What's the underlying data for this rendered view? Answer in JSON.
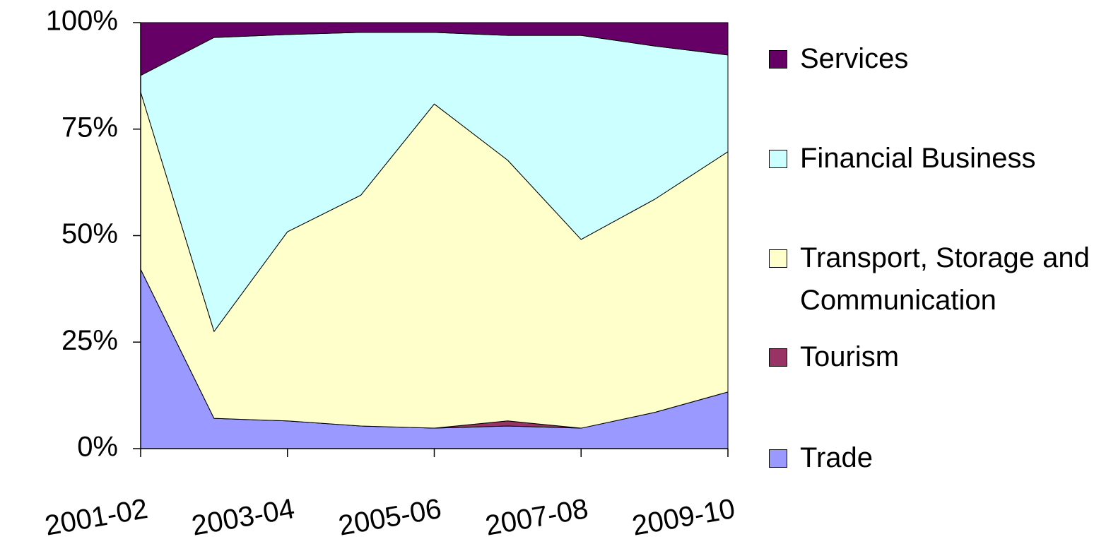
{
  "chart_data": {
    "type": "stacked_area_percent",
    "categories": [
      "2001-02",
      null,
      "2003-04",
      null,
      "2005-06",
      null,
      "2007-08",
      null,
      "2009-10"
    ],
    "series": [
      {
        "name": "Trade",
        "color": "#9999ff",
        "values": [
          42.1,
          7.1,
          6.5,
          5.3,
          4.8,
          5.3,
          4.8,
          8.5,
          13.3
        ]
      },
      {
        "name": "Tourism",
        "color": "#993366",
        "values": [
          0,
          0,
          0,
          0,
          0,
          1.2,
          0,
          0,
          0
        ]
      },
      {
        "name": "Transport, Storage and Communication",
        "color": "#ffffcc",
        "values": [
          41.6,
          20.4,
          44.4,
          54.2,
          76.1,
          61.2,
          44.3,
          50.0,
          56.4
        ]
      },
      {
        "name": "Financial Business",
        "color": "#ccffff",
        "values": [
          3.9,
          69.0,
          46.3,
          38.2,
          16.8,
          29.3,
          47.9,
          36.0,
          22.7
        ]
      },
      {
        "name": "Services",
        "color": "#660066",
        "values": [
          12.4,
          3.5,
          2.8,
          2.3,
          2.3,
          3.0,
          3.0,
          5.5,
          7.6
        ]
      }
    ],
    "ylim": [
      0,
      100
    ],
    "yticks": [
      {
        "value": 0,
        "label": "0%"
      },
      {
        "value": 25,
        "label": "25%"
      },
      {
        "value": 50,
        "label": "50%"
      },
      {
        "value": 75,
        "label": "75%"
      },
      {
        "value": 100,
        "label": "100%"
      }
    ],
    "legend": "right",
    "grid": false
  }
}
